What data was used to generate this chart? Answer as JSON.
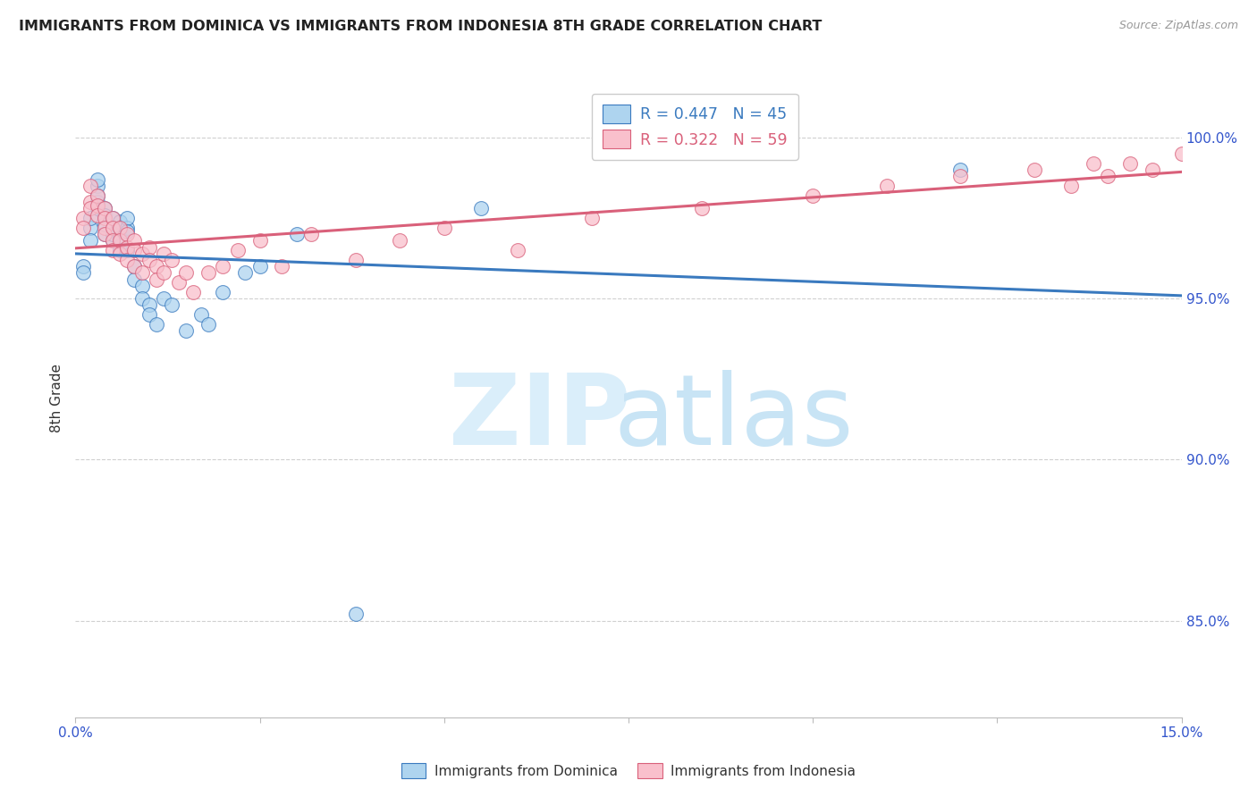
{
  "title": "IMMIGRANTS FROM DOMINICA VS IMMIGRANTS FROM INDONESIA 8TH GRADE CORRELATION CHART",
  "source": "Source: ZipAtlas.com",
  "ylabel": "8th Grade",
  "ylabel_ticks": [
    "100.0%",
    "95.0%",
    "90.0%",
    "85.0%"
  ],
  "ylabel_tick_vals": [
    1.0,
    0.95,
    0.9,
    0.85
  ],
  "xmin": 0.0,
  "xmax": 0.15,
  "ymin": 0.82,
  "ymax": 1.018,
  "r_dominica": 0.447,
  "n_dominica": 45,
  "r_indonesia": 0.322,
  "n_indonesia": 59,
  "color_dominica": "#aed4ef",
  "color_indonesia": "#f9c0cc",
  "line_color_dominica": "#3a7abf",
  "line_color_indonesia": "#d9607a",
  "watermark_zip_color": "#daeefa",
  "watermark_atlas_color": "#c8e4f5",
  "background_color": "#ffffff",
  "grid_color": "#d0d0d0",
  "axis_tick_color": "#3355cc",
  "dominica_x": [
    0.001,
    0.001,
    0.002,
    0.002,
    0.002,
    0.003,
    0.003,
    0.003,
    0.003,
    0.003,
    0.004,
    0.004,
    0.004,
    0.004,
    0.005,
    0.005,
    0.005,
    0.005,
    0.006,
    0.006,
    0.006,
    0.006,
    0.007,
    0.007,
    0.007,
    0.007,
    0.008,
    0.008,
    0.009,
    0.009,
    0.01,
    0.01,
    0.011,
    0.012,
    0.013,
    0.015,
    0.017,
    0.018,
    0.02,
    0.023,
    0.025,
    0.03,
    0.038,
    0.055,
    0.12
  ],
  "dominica_y": [
    0.96,
    0.958,
    0.972,
    0.968,
    0.975,
    0.985,
    0.98,
    0.978,
    0.982,
    0.987,
    0.97,
    0.973,
    0.978,
    0.976,
    0.968,
    0.972,
    0.975,
    0.97,
    0.974,
    0.972,
    0.969,
    0.965,
    0.972,
    0.975,
    0.971,
    0.965,
    0.96,
    0.956,
    0.954,
    0.95,
    0.948,
    0.945,
    0.942,
    0.95,
    0.948,
    0.94,
    0.945,
    0.942,
    0.952,
    0.958,
    0.96,
    0.97,
    0.852,
    0.978,
    0.99
  ],
  "indonesia_x": [
    0.001,
    0.001,
    0.002,
    0.002,
    0.002,
    0.003,
    0.003,
    0.003,
    0.004,
    0.004,
    0.004,
    0.004,
    0.005,
    0.005,
    0.005,
    0.005,
    0.006,
    0.006,
    0.006,
    0.007,
    0.007,
    0.007,
    0.008,
    0.008,
    0.008,
    0.009,
    0.009,
    0.01,
    0.01,
    0.011,
    0.011,
    0.012,
    0.012,
    0.013,
    0.014,
    0.015,
    0.016,
    0.018,
    0.02,
    0.022,
    0.025,
    0.028,
    0.032,
    0.038,
    0.044,
    0.05,
    0.06,
    0.07,
    0.085,
    0.1,
    0.11,
    0.12,
    0.13,
    0.135,
    0.138,
    0.14,
    0.143,
    0.146,
    0.15
  ],
  "indonesia_y": [
    0.975,
    0.972,
    0.985,
    0.98,
    0.978,
    0.982,
    0.979,
    0.976,
    0.978,
    0.975,
    0.972,
    0.97,
    0.975,
    0.972,
    0.968,
    0.965,
    0.972,
    0.968,
    0.964,
    0.97,
    0.966,
    0.962,
    0.968,
    0.965,
    0.96,
    0.964,
    0.958,
    0.966,
    0.962,
    0.96,
    0.956,
    0.964,
    0.958,
    0.962,
    0.955,
    0.958,
    0.952,
    0.958,
    0.96,
    0.965,
    0.968,
    0.96,
    0.97,
    0.962,
    0.968,
    0.972,
    0.965,
    0.975,
    0.978,
    0.982,
    0.985,
    0.988,
    0.99,
    0.985,
    0.992,
    0.988,
    0.992,
    0.99,
    0.995
  ]
}
